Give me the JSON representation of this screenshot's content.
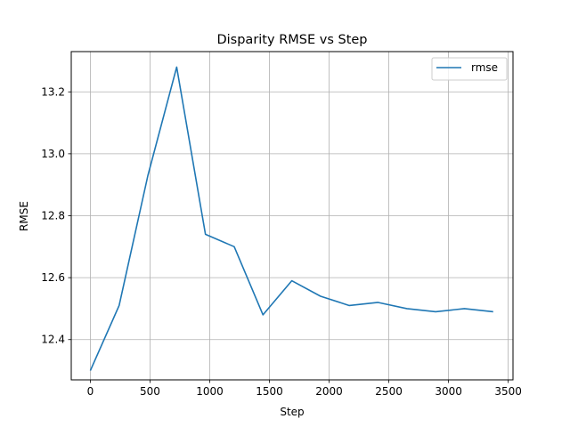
{
  "chart_data": {
    "type": "line",
    "title": "Disparity RMSE vs Step",
    "xlabel": "Step",
    "ylabel": "RMSE",
    "xlim": [
      -160,
      3540
    ],
    "ylim": [
      12.27,
      13.33
    ],
    "xticks": [
      0,
      500,
      1000,
      1500,
      2000,
      2500,
      3000,
      3500
    ],
    "yticks": [
      12.4,
      12.6,
      12.8,
      13.0,
      13.2
    ],
    "ytick_labels": [
      "12.4",
      "12.6",
      "12.8",
      "13.0",
      "13.2"
    ],
    "grid": true,
    "legend_position": "top-right",
    "series": [
      {
        "name": "rmse",
        "color": "#1f77b4",
        "x": [
          0,
          241,
          482,
          723,
          964,
          1205,
          1446,
          1687,
          1928,
          2169,
          2410,
          2651,
          2892,
          3133,
          3374
        ],
        "y": [
          12.3,
          12.51,
          12.93,
          13.28,
          12.74,
          12.7,
          12.48,
          12.59,
          12.54,
          12.51,
          12.52,
          12.5,
          12.49,
          12.5,
          12.49
        ]
      }
    ]
  }
}
